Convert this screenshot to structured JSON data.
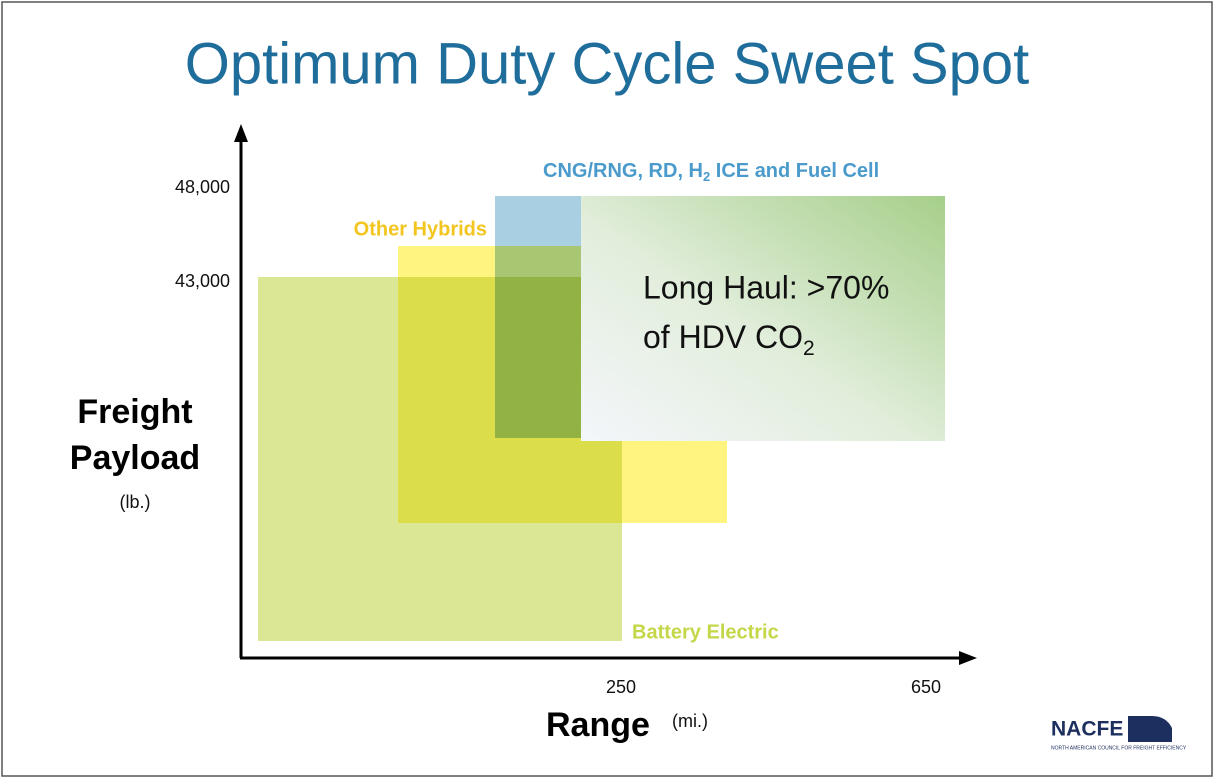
{
  "title": "Optimum Duty Cycle Sweet Spot",
  "y_axis": {
    "label_lines": [
      "Freight",
      "Payload"
    ],
    "unit": "(lb.)",
    "ticks": [
      "48,000",
      "43,000"
    ]
  },
  "x_axis": {
    "label": "Range",
    "unit": "(mi.)",
    "ticks": [
      "250",
      "650"
    ]
  },
  "regions": {
    "cng": {
      "label_parts": [
        "CNG/RNG, RD, H",
        "2",
        " ICE and Fuel Cell"
      ]
    },
    "hybrids": {
      "label": "Other Hybrids"
    },
    "battery": {
      "label": "Battery Electric"
    },
    "long_haul": {
      "line1": "Long Haul: >70%",
      "line2_parts": [
        "of HDV CO",
        "2"
      ]
    }
  },
  "logo": {
    "name": "NACFE",
    "tagline": "NORTH AMERICAN COUNCIL FOR FREIGHT EFFICIENCY"
  }
}
